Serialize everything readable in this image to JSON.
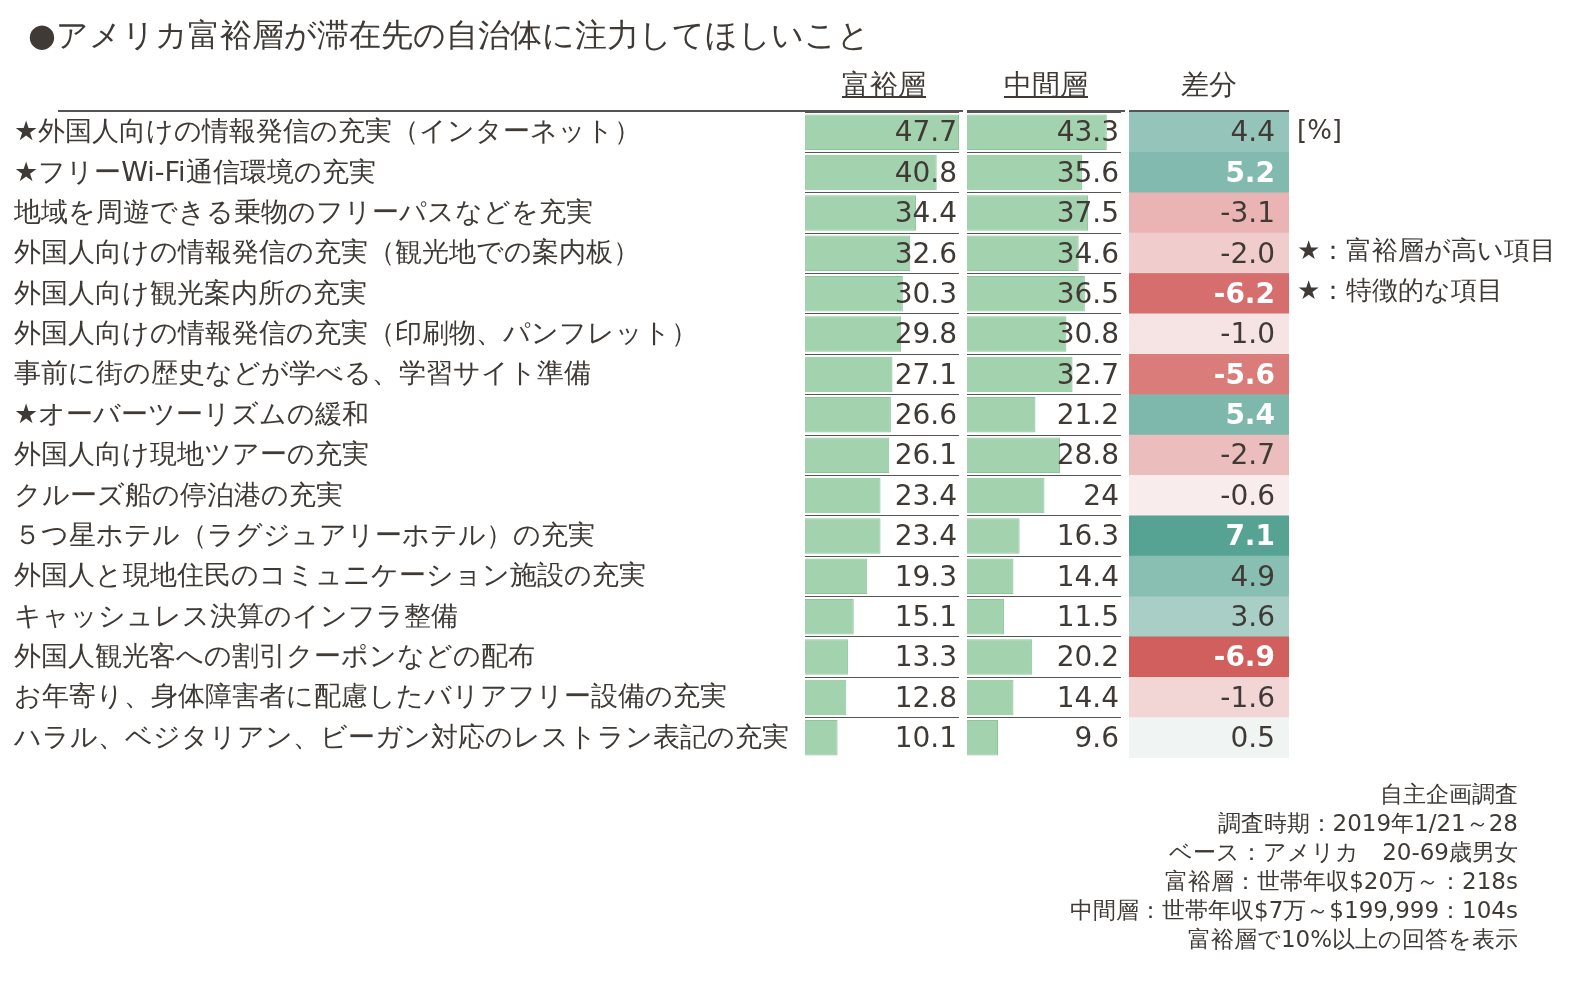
{
  "chart_data": [
    {
      "type": "bar",
      "orientation": "horizontal",
      "title": "●アメリカ富裕層が滞在先の自治体に注力してほしいこと",
      "tick_labels": "y",
      "grid": "y",
      "categories": [
        "★外国人向けの情報発信の充実（インターネット）",
        "★フリーWi-Fi通信環境の充実",
        "地域を周遊できる乗物のフリーパスなどを充実",
        "外国人向けの情報発信の充実（観光地での案内板）",
        "外国人向け観光案内所の充実",
        "外国人向けの情報発信の充実（印刷物、パンフレット）",
        "事前に街の歴史などが学べる、学習サイト準備",
        "★オーバーツーリズムの緩和",
        "外国人向け現地ツアーの充実",
        "クルーズ船の停泊港の充実",
        "５つ星ホテル（ラグジュアリーホテル）の充実",
        "外国人と現地住民のコミュニケーション施設の充実",
        "キャッシュレス決算のインフラ整備",
        "外国人観光客への割引クーポンなどの配布",
        "お年寄り、身体障害者に配慮したバリアフリー設備の充実",
        "ハラル、ベジタリアン、ビーガン対応のレストラン表記の充実"
      ],
      "series": [
        {
          "name": "富裕層",
          "color": "#8cc79a",
          "values": [
            47.7,
            40.8,
            34.4,
            32.6,
            30.3,
            29.8,
            27.1,
            26.6,
            26.1,
            23.4,
            23.4,
            19.3,
            15.1,
            13.3,
            12.8,
            10.1
          ],
          "value_labels": [
            "47.7",
            "40.8",
            "34.4",
            "32.6",
            "30.3",
            "29.8",
            "27.1",
            "26.6",
            "26.1",
            "23.4",
            "23.4",
            "19.3",
            "15.1",
            "13.3",
            "12.8",
            "10.1"
          ]
        }
      ],
      "annotations": [
        "[%]",
        "★：富裕層が高い項目",
        "★：特徴的な項目",
        "自主企画調査",
        "調査時期：2019年1/21～28",
        "ベース：アメリカ　20-69歳男女",
        "富裕層：世帯年収$20万～：218s",
        "中間層：世帯年収$7万～$199,999：104s",
        "富裕層で10%以上の回答を表示"
      ]
    },
    {
      "type": "bar",
      "orientation": "horizontal",
      "tick_labels": false,
      "grid": "y",
      "categories": [
        null,
        null,
        null,
        null,
        null,
        null,
        null,
        null,
        null,
        null,
        null,
        null,
        null,
        null,
        null,
        null
      ],
      "series": [
        {
          "name": "中間層",
          "color": "#8cc79a",
          "values": [
            43.3,
            35.6,
            37.5,
            34.6,
            36.5,
            30.8,
            32.7,
            21.2,
            28.8,
            24,
            16.3,
            14.4,
            11.5,
            20.2,
            14.4,
            9.6
          ],
          "value_labels": [
            "43.3",
            "35.6",
            "37.5",
            "34.6",
            "36.5",
            "30.8",
            "32.7",
            "21.2",
            "28.8",
            "24",
            "16.3",
            "14.4",
            "11.5",
            "20.2",
            "14.4",
            "9.6"
          ]
        }
      ]
    },
    {
      "type": "heatmap",
      "tick_labels": false,
      "grid": "y",
      "categories": [
        "差分"
      ],
      "y_categories": [
        null,
        null,
        null,
        null,
        null,
        null,
        null,
        null,
        null,
        null,
        null,
        null,
        null,
        null,
        null,
        null
      ],
      "cells": [
        [
          4.4
        ],
        [
          5.2
        ],
        [
          -3.1
        ],
        [
          -2.0
        ],
        [
          -6.2
        ],
        [
          -1.0
        ],
        [
          -5.6
        ],
        [
          5.4
        ],
        [
          -2.7
        ],
        [
          -0.6
        ],
        [
          7.1
        ],
        [
          4.9
        ],
        [
          3.6
        ],
        [
          -6.9
        ],
        [
          -1.6
        ],
        [
          0.5
        ]
      ],
      "cell_labels": [
        [
          "4.4"
        ],
        [
          "5.2"
        ],
        [
          "-3.1"
        ],
        [
          "-2.0"
        ],
        [
          "-6.2"
        ],
        [
          "-1.0"
        ],
        [
          "-5.6"
        ],
        [
          "5.4"
        ],
        [
          "-2.7"
        ],
        [
          "-0.6"
        ],
        [
          "7.1"
        ],
        [
          "4.9"
        ],
        [
          "3.6"
        ],
        [
          "-6.9"
        ],
        [
          "-1.6"
        ],
        [
          "0.5"
        ]
      ]
    }
  ]
}
